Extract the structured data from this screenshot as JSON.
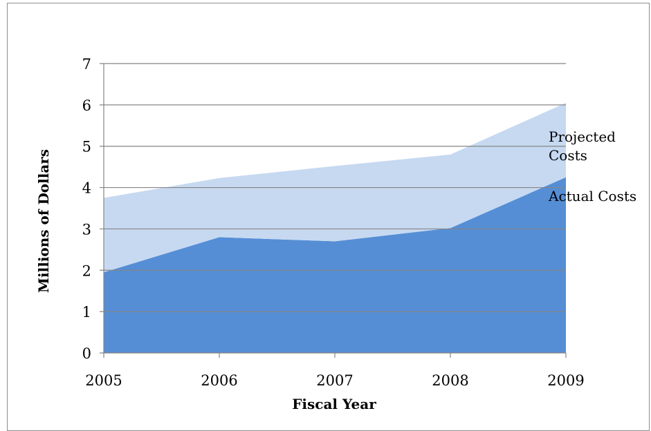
{
  "chart_data": {
    "type": "area",
    "stacked": true,
    "x": [
      "2005",
      "2006",
      "2007",
      "2008",
      "2009"
    ],
    "series": [
      {
        "name": "Actual Costs",
        "values": [
          1.95,
          2.8,
          2.7,
          3.02,
          4.25
        ],
        "color": "#558ed5"
      },
      {
        "name": "Projected Costs",
        "values": [
          1.8,
          1.43,
          1.82,
          1.78,
          1.8
        ],
        "color": "#c6d9f1"
      }
    ],
    "series_label_lines": [
      {
        "series": "Projected Costs",
        "lines": [
          "Projected",
          "Costs"
        ]
      },
      {
        "series": "Actual Costs",
        "lines": [
          "Actual Costs"
        ]
      }
    ],
    "xlabel": "Fiscal Year",
    "ylabel": "Millions of Dollars",
    "ylim": [
      0,
      7
    ],
    "yticks": [
      "0",
      "1",
      "2",
      "3",
      "4",
      "5",
      "6",
      "7"
    ],
    "grid": "horizontal",
    "gridColor": "#858585",
    "legend": "direct labels at right"
  }
}
